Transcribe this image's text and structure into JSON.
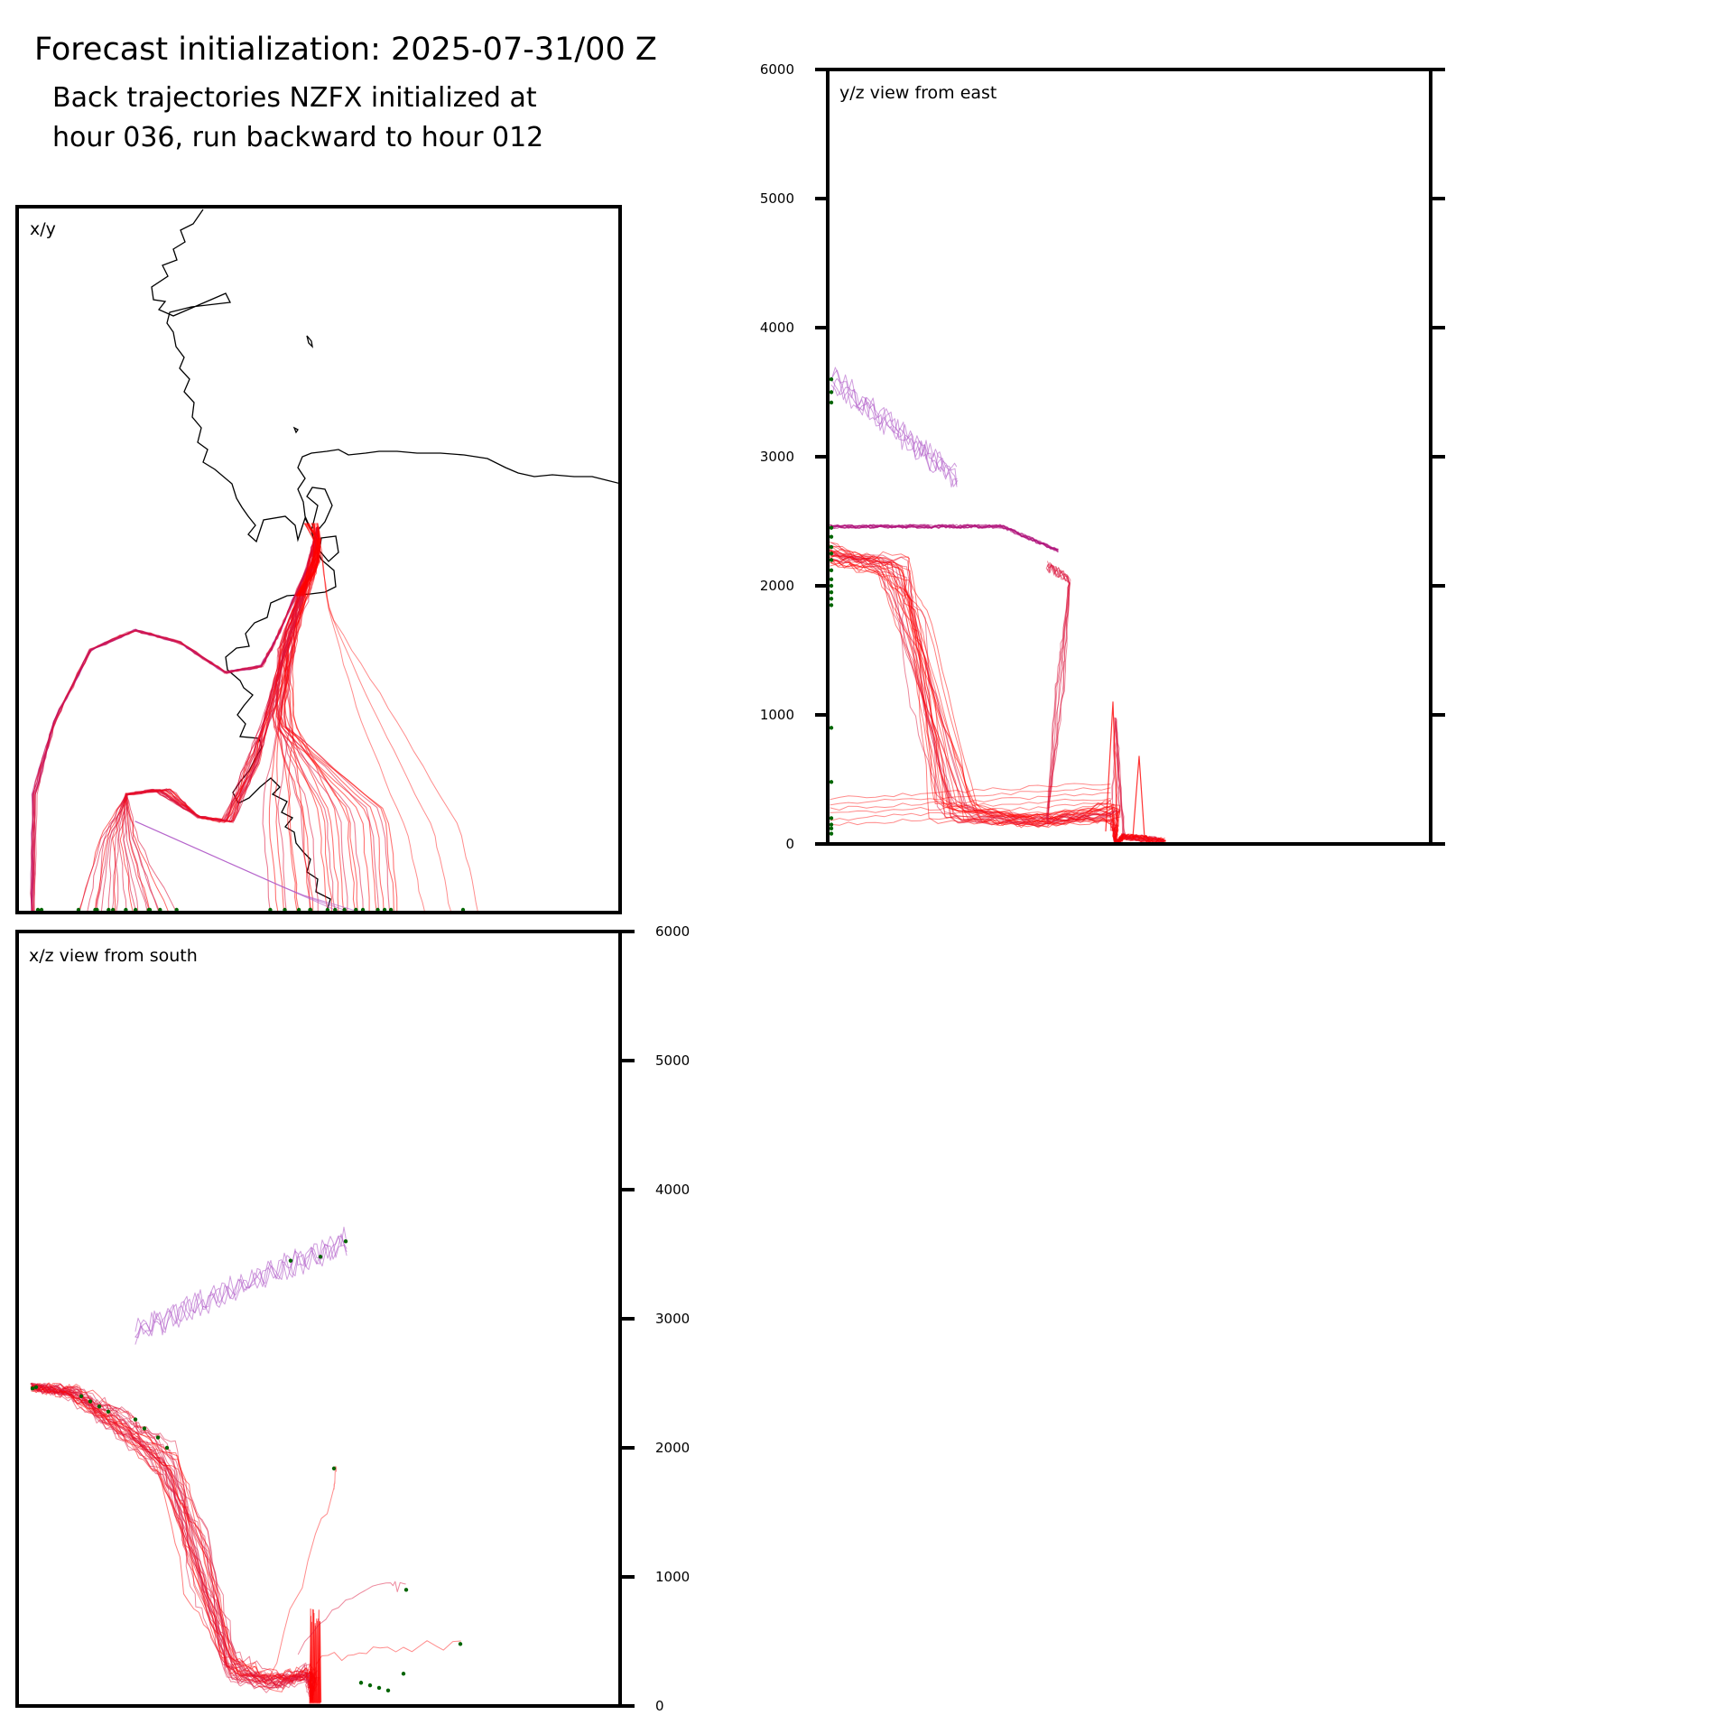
{
  "header": {
    "title": "Forecast initialization: 2025-07-31/00 Z",
    "subtitle_lines": [
      "Back trajectories NZFX initialized at",
      "hour 036, run backward to hour 012"
    ]
  },
  "colors": {
    "trajectory_red": "#ff0000",
    "trajectory_crimson": "#dc143c",
    "trajectory_magenta": "#b0107a",
    "trajectory_purple": "#b05cc8",
    "endpoint_green": "#006400",
    "coastline": "#000000"
  },
  "chart_data": [
    {
      "type": "line",
      "panel": "xy",
      "title": "x/y",
      "description_note": "",
      "xlabel": "",
      "ylabel": "",
      "grid": false
    },
    {
      "type": "line",
      "panel": "yz",
      "title": "y/z view from east",
      "xlabel": "",
      "ylabel": "",
      "ylim": [
        0,
        6000
      ],
      "yticks": [
        0,
        1000,
        2000,
        3000,
        4000,
        5000,
        6000
      ],
      "grid": false
    },
    {
      "type": "line",
      "panel": "xz",
      "title": "x/z view from south",
      "xlabel": "",
      "ylabel": "",
      "ylim": [
        0,
        6000
      ],
      "yticks": [
        0,
        1000,
        2000,
        3000,
        4000,
        5000,
        6000
      ],
      "grid": false
    }
  ]
}
